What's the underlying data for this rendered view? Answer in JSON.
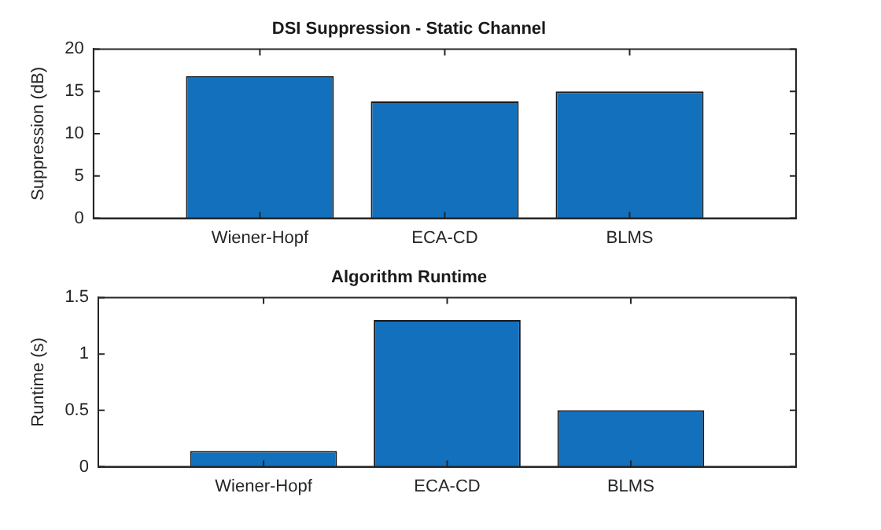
{
  "chart_data": [
    {
      "type": "bar",
      "title": "DSI Suppression - Static Channel",
      "ylabel": "Suppression (dB)",
      "categories": [
        "Wiener-Hopf",
        "ECA-CD",
        "BLMS"
      ],
      "values": [
        16.8,
        13.8,
        15.0
      ],
      "color": "#1270bd",
      "ylim": [
        0,
        20
      ],
      "yticks": [
        0,
        5,
        10,
        15,
        20
      ],
      "grid": false,
      "legend": false
    },
    {
      "type": "bar",
      "title": "Algorithm Runtime",
      "ylabel": "Runtime (s)",
      "categories": [
        "Wiener-Hopf",
        "ECA-CD",
        "BLMS"
      ],
      "values": [
        0.14,
        1.3,
        0.5
      ],
      "color": "#1270bd",
      "ylim": [
        0,
        1.5
      ],
      "yticks": [
        0,
        0.5,
        1,
        1.5
      ],
      "grid": false,
      "legend": false
    }
  ]
}
